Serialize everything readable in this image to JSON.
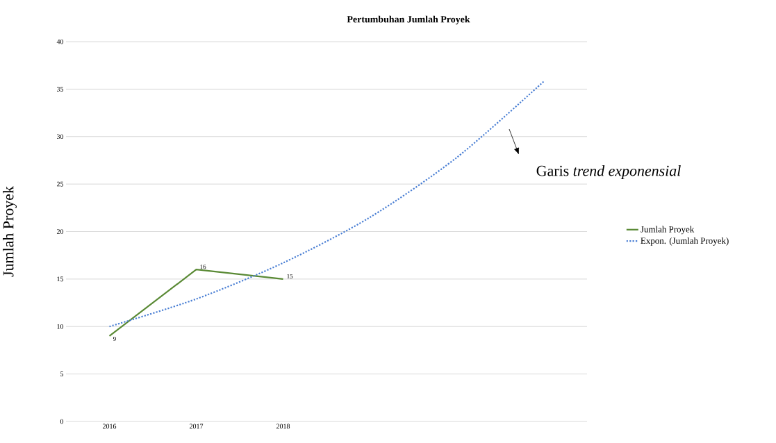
{
  "chart_data": {
    "type": "line",
    "title": "Pertumbuhan Jumlah Proyek",
    "ylabel": "Jumlah Proyek",
    "categories": [
      "2016",
      "2017",
      "2018",
      null,
      null,
      null
    ],
    "series": [
      {
        "name": "Jumlah Proyek",
        "color": "#5a8a35",
        "line_style": "solid",
        "data_labels": true,
        "values": [
          9,
          16,
          15,
          null,
          null,
          null
        ]
      },
      {
        "name": "Expon. (Jumlah Proyek)",
        "color": "#4a7fd4",
        "line_style": "dotted",
        "values": [
          10,
          12.9,
          16.7,
          21.5,
          27.8,
          35.8
        ]
      }
    ],
    "ylim": [
      0,
      40
    ],
    "yticks": [
      0,
      5,
      10,
      15,
      20,
      25,
      30,
      35,
      40
    ],
    "grid": "y",
    "legend": "right",
    "annotations": [
      "Garis *trend exponensial*"
    ]
  }
}
